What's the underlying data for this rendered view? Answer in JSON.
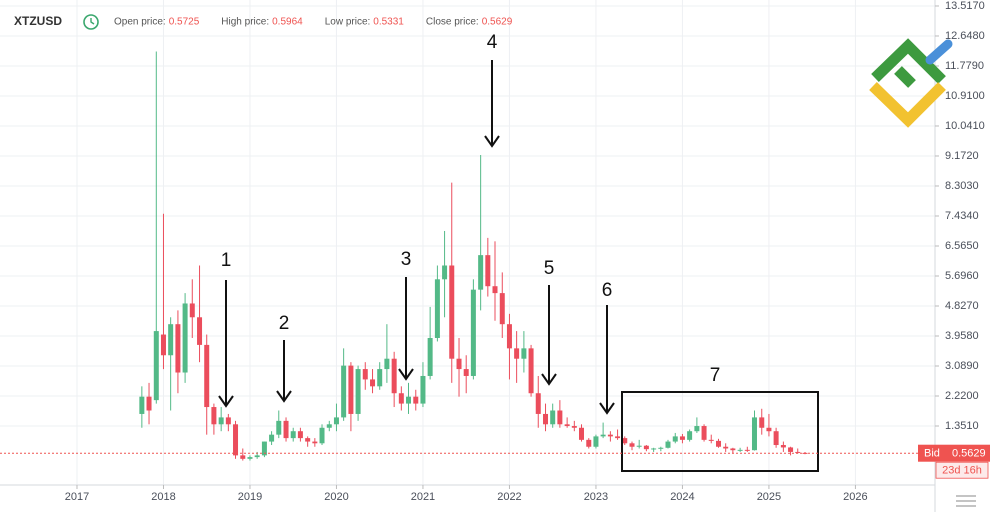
{
  "chart_data": {
    "type": "candlestick",
    "title": "XTZUSD",
    "stats": [
      {
        "label": "Open price:",
        "value": 0.5725
      },
      {
        "label": "High price:",
        "value": 0.5964
      },
      {
        "label": "Low price:",
        "value": 0.5331
      },
      {
        "label": "Close price:",
        "value": 0.5629
      }
    ],
    "x": [
      2017.75,
      2017.833,
      2017.917,
      2018,
      2018.083,
      2018.167,
      2018.25,
      2018.333,
      2018.417,
      2018.5,
      2018.583,
      2018.667,
      2018.75,
      2018.833,
      2018.917,
      2019,
      2019.083,
      2019.167,
      2019.25,
      2019.333,
      2019.417,
      2019.5,
      2019.583,
      2019.667,
      2019.75,
      2019.833,
      2019.917,
      2020,
      2020.083,
      2020.167,
      2020.25,
      2020.333,
      2020.417,
      2020.5,
      2020.583,
      2020.667,
      2020.75,
      2020.833,
      2020.917,
      2021,
      2021.083,
      2021.167,
      2021.25,
      2021.333,
      2021.417,
      2021.5,
      2021.583,
      2021.667,
      2021.75,
      2021.833,
      2021.917,
      2022,
      2022.083,
      2022.167,
      2022.25,
      2022.333,
      2022.417,
      2022.5,
      2022.583,
      2022.667,
      2022.75,
      2022.833,
      2022.917,
      2023,
      2023.083,
      2023.167,
      2023.25,
      2023.333,
      2023.417,
      2023.5,
      2023.583,
      2023.667,
      2023.75,
      2023.833,
      2023.917,
      2024,
      2024.083,
      2024.167,
      2024.25,
      2024.333,
      2024.417,
      2024.5,
      2024.583,
      2024.667,
      2024.75,
      2024.833,
      2024.917,
      2025,
      2025.083,
      2025.167,
      2025.25,
      2025.333,
      2025.417
    ],
    "open": [
      1.7,
      2.2,
      2.1,
      4.0,
      3.4,
      4.3,
      2.9,
      4.9,
      4.5,
      3.7,
      1.9,
      1.4,
      1.6,
      1.4,
      0.5,
      0.4,
      0.45,
      0.5,
      0.9,
      1.1,
      1.5,
      1.0,
      1.2,
      1.0,
      0.9,
      0.85,
      1.3,
      1.4,
      1.6,
      3.1,
      1.7,
      3.0,
      2.7,
      2.5,
      3.0,
      3.3,
      2.3,
      2.0,
      2.2,
      2.0,
      2.8,
      3.9,
      5.6,
      6.0,
      3.3,
      3.0,
      2.8,
      5.3,
      6.3,
      5.4,
      5.2,
      4.3,
      3.6,
      3.3,
      3.6,
      2.3,
      1.7,
      1.4,
      1.8,
      1.4,
      1.35,
      1.3,
      0.95,
      0.75,
      1.05,
      1.1,
      1.05,
      1.0,
      0.85,
      0.75,
      0.78,
      0.68,
      0.7,
      0.72,
      0.9,
      1.05,
      0.95,
      1.2,
      1.35,
      0.95,
      0.92,
      0.75,
      0.7,
      0.65,
      0.66,
      0.65,
      1.6,
      1.3,
      1.2,
      0.8,
      0.73,
      0.6,
      0.5725
    ],
    "high": [
      2.5,
      2.6,
      12.2,
      7.5,
      4.5,
      4.7,
      5.2,
      5.6,
      6.0,
      4.0,
      2.0,
      1.9,
      1.7,
      1.5,
      0.7,
      0.5,
      0.6,
      0.9,
      1.2,
      1.8,
      1.6,
      1.3,
      1.3,
      1.05,
      1.0,
      1.4,
      1.5,
      2.0,
      3.6,
      3.2,
      3.1,
      3.2,
      3.0,
      3.2,
      4.3,
      3.5,
      2.5,
      2.6,
      2.4,
      3.2,
      4.8,
      6.0,
      7.0,
      8.4,
      3.9,
      3.4,
      5.6,
      9.2,
      6.8,
      6.7,
      5.8,
      4.6,
      4.1,
      4.1,
      3.7,
      2.8,
      2.0,
      2.0,
      2.1,
      1.6,
      1.5,
      1.4,
      1.0,
      1.1,
      1.45,
      1.2,
      1.25,
      1.05,
      0.9,
      0.95,
      0.8,
      0.72,
      0.75,
      0.95,
      1.15,
      1.12,
      1.25,
      1.6,
      1.4,
      1.1,
      0.98,
      0.85,
      0.72,
      0.72,
      0.75,
      1.8,
      1.85,
      1.7,
      1.3,
      0.9,
      0.75,
      0.7,
      0.5964
    ],
    "low": [
      1.3,
      1.4,
      2.0,
      3.0,
      1.8,
      2.3,
      2.6,
      3.9,
      3.2,
      1.1,
      1.1,
      1.2,
      1.2,
      0.4,
      0.35,
      0.35,
      0.4,
      0.45,
      0.8,
      1.0,
      0.9,
      0.9,
      0.9,
      0.75,
      0.75,
      0.8,
      1.2,
      1.2,
      1.5,
      1.2,
      1.5,
      2.4,
      2.3,
      2.4,
      2.6,
      1.9,
      1.8,
      1.7,
      1.8,
      1.9,
      2.7,
      3.8,
      4.5,
      2.6,
      2.2,
      2.3,
      2.7,
      4.7,
      5.1,
      4.4,
      3.9,
      2.7,
      2.6,
      2.9,
      2.2,
      1.3,
      1.2,
      1.3,
      1.3,
      1.3,
      1.2,
      0.9,
      0.7,
      0.7,
      1.0,
      0.9,
      0.95,
      0.8,
      0.65,
      0.7,
      0.62,
      0.6,
      0.62,
      0.7,
      0.85,
      0.85,
      0.9,
      1.15,
      0.9,
      0.85,
      0.72,
      0.6,
      0.55,
      0.6,
      0.6,
      0.64,
      1.1,
      1.05,
      0.72,
      0.6,
      0.5,
      0.55,
      0.5331
    ],
    "close": [
      2.2,
      1.8,
      4.1,
      3.4,
      4.3,
      2.9,
      4.9,
      4.5,
      3.7,
      1.9,
      1.4,
      1.6,
      1.4,
      0.5,
      0.4,
      0.45,
      0.5,
      0.9,
      1.1,
      1.5,
      1.0,
      1.2,
      1.0,
      0.9,
      0.85,
      1.3,
      1.4,
      1.6,
      3.1,
      1.7,
      3.0,
      2.7,
      2.5,
      3.0,
      3.3,
      2.3,
      2.0,
      2.2,
      2.0,
      2.8,
      3.9,
      5.6,
      6.0,
      3.3,
      3.0,
      2.8,
      5.3,
      6.3,
      5.4,
      5.2,
      4.3,
      3.6,
      3.3,
      3.6,
      2.3,
      1.7,
      1.4,
      1.8,
      1.4,
      1.35,
      1.3,
      0.95,
      0.75,
      1.05,
      1.1,
      1.05,
      1.0,
      0.85,
      0.75,
      0.78,
      0.68,
      0.7,
      0.72,
      0.9,
      1.05,
      0.95,
      1.2,
      1.35,
      0.95,
      0.92,
      0.75,
      0.7,
      0.65,
      0.66,
      0.65,
      1.6,
      1.3,
      1.2,
      0.8,
      0.73,
      0.6,
      0.58,
      0.5629
    ],
    "up_color": "#53b987",
    "down_color": "#eb4d5c",
    "xlim": [
      2016.11,
      2026.92
    ],
    "ylim": [
      -0.358,
      13.69
    ],
    "xticks": [
      2017,
      2018,
      2019,
      2020,
      2021,
      2022,
      2023,
      2024,
      2025,
      2026
    ],
    "yticks": [
      {
        "value": 1.351,
        "label": "1.3510"
      },
      {
        "value": 2.22,
        "label": "2.2200"
      },
      {
        "value": 3.089,
        "label": "3.0890"
      },
      {
        "value": 3.958,
        "label": "3.9580"
      },
      {
        "value": 4.827,
        "label": "4.8270"
      },
      {
        "value": 5.696,
        "label": "5.6960"
      },
      {
        "value": 6.565,
        "label": "6.5650"
      },
      {
        "value": 7.434,
        "label": "7.4340"
      },
      {
        "value": 8.303,
        "label": "8.3030"
      },
      {
        "value": 9.172,
        "label": "9.1720"
      },
      {
        "value": 10.041,
        "label": "10.0410"
      },
      {
        "value": 10.91,
        "label": "10.9100"
      },
      {
        "value": 11.779,
        "label": "11.7790"
      },
      {
        "value": 12.648,
        "label": "12.6480"
      },
      {
        "value": 13.517,
        "label": "13.5170"
      }
    ],
    "grid": true,
    "bid_label": "Bid",
    "bid": 0.5629,
    "countdown": "23d 16h",
    "annotations": [
      "1",
      "2",
      "3",
      "4",
      "5",
      "6",
      "7"
    ]
  }
}
